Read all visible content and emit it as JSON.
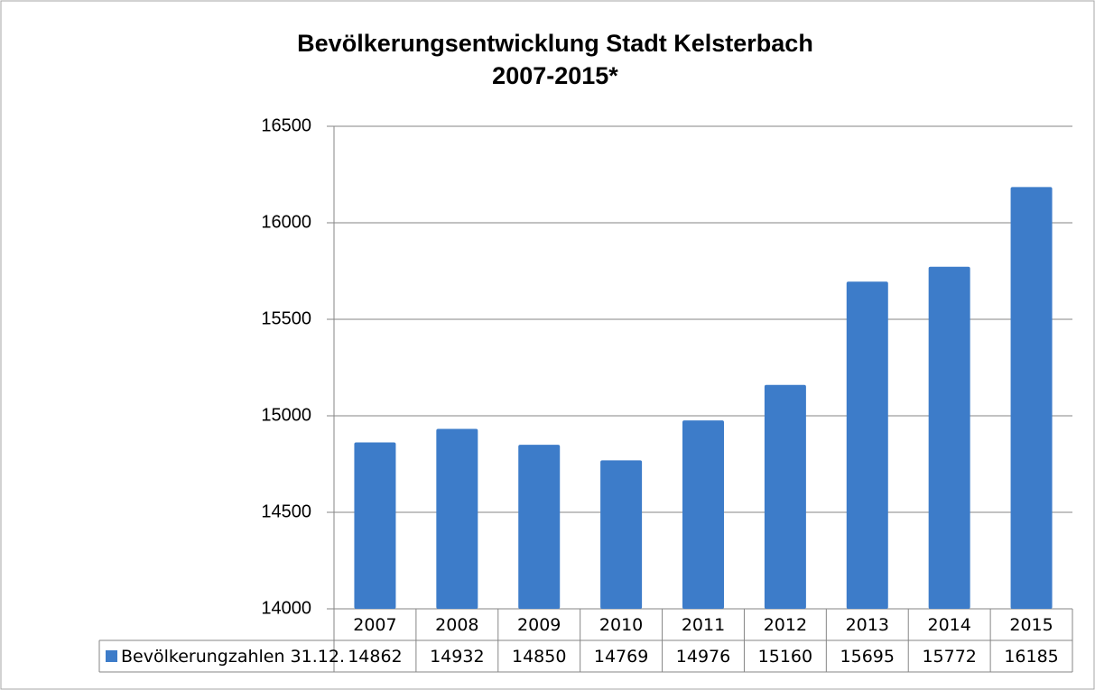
{
  "chart_data": {
    "type": "bar",
    "title": "Bevölkerungsentwicklung Stadt Kelsterbach",
    "subtitle": "2007-2015*",
    "categories": [
      "2007",
      "2008",
      "2009",
      "2010",
      "2011",
      "2012",
      "2013",
      "2014",
      "2015"
    ],
    "series": [
      {
        "name": "Bevölkerungzahlen 31.12.",
        "color": "#3d7cc9",
        "values": [
          14862,
          14932,
          14850,
          14769,
          14976,
          15160,
          15695,
          15772,
          16185
        ]
      }
    ],
    "ylim": [
      14000,
      16500
    ],
    "yticks": [
      14000,
      14500,
      15000,
      15500,
      16000,
      16500
    ],
    "grid": true
  }
}
